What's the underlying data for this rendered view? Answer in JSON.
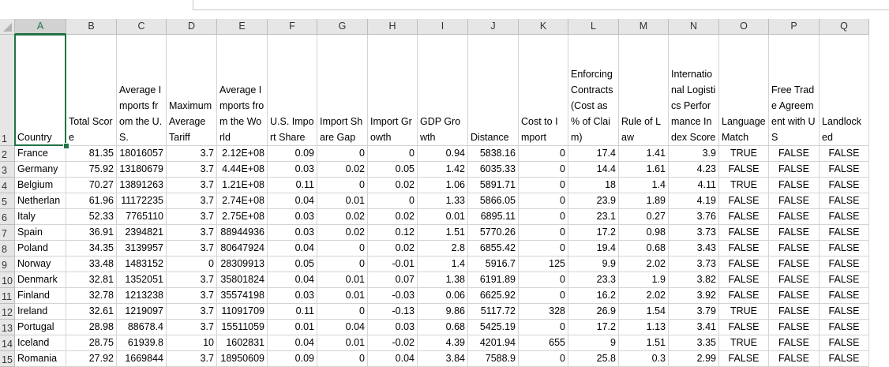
{
  "columns": [
    "A",
    "B",
    "C",
    "D",
    "E",
    "F",
    "G",
    "H",
    "I",
    "J",
    "K",
    "L",
    "M",
    "N",
    "O",
    "P",
    "Q"
  ],
  "selected_column": "A",
  "headers": [
    "Country",
    "Total Score",
    "Average Imports from the U.S.",
    "Maximum Average Tariff",
    "Average Imports from the World",
    "U.S. Import Share",
    "Import Share Gap",
    "Import Growth",
    "GDP Growth",
    "Distance",
    "Cost to Import",
    "Enforcing Contracts (Cost as % of Claim)",
    "Rule of Law",
    "International Logistics Performance Index Score",
    "Language Match",
    "Free Trade Agreement with US",
    "Landlocked"
  ],
  "rows": [
    {
      "num": "2",
      "cells": [
        "France",
        "81.35",
        "18016057",
        "3.7",
        "2.12E+08",
        "0.09",
        "0",
        "0",
        "0.94",
        "5838.16",
        "0",
        "17.4",
        "1.41",
        "3.9",
        "TRUE",
        "FALSE",
        "FALSE"
      ]
    },
    {
      "num": "3",
      "cells": [
        "Germany",
        "75.92",
        "13180679",
        "3.7",
        "4.44E+08",
        "0.03",
        "0.02",
        "0.05",
        "1.42",
        "6035.33",
        "0",
        "14.4",
        "1.61",
        "4.23",
        "FALSE",
        "FALSE",
        "FALSE"
      ]
    },
    {
      "num": "4",
      "cells": [
        "Belgium",
        "70.27",
        "13891263",
        "3.7",
        "1.21E+08",
        "0.11",
        "0",
        "0.02",
        "1.06",
        "5891.71",
        "0",
        "18",
        "1.4",
        "4.11",
        "TRUE",
        "FALSE",
        "FALSE"
      ]
    },
    {
      "num": "5",
      "cells": [
        "Netherlan",
        "61.96",
        "11172235",
        "3.7",
        "2.74E+08",
        "0.04",
        "0.01",
        "0",
        "1.33",
        "5866.05",
        "0",
        "23.9",
        "1.89",
        "4.19",
        "FALSE",
        "FALSE",
        "FALSE"
      ]
    },
    {
      "num": "6",
      "cells": [
        "Italy",
        "52.33",
        "7765110",
        "3.7",
        "2.75E+08",
        "0.03",
        "0.02",
        "0.02",
        "0.01",
        "6895.11",
        "0",
        "23.1",
        "0.27",
        "3.76",
        "FALSE",
        "FALSE",
        "FALSE"
      ]
    },
    {
      "num": "7",
      "cells": [
        "Spain",
        "36.91",
        "2394821",
        "3.7",
        "88944936",
        "0.03",
        "0.02",
        "0.12",
        "1.51",
        "5770.26",
        "0",
        "17.2",
        "0.98",
        "3.73",
        "FALSE",
        "FALSE",
        "FALSE"
      ]
    },
    {
      "num": "8",
      "cells": [
        "Poland",
        "34.35",
        "3139957",
        "3.7",
        "80647924",
        "0.04",
        "0",
        "0.02",
        "2.8",
        "6855.42",
        "0",
        "19.4",
        "0.68",
        "3.43",
        "FALSE",
        "FALSE",
        "FALSE"
      ]
    },
    {
      "num": "9",
      "cells": [
        "Norway",
        "33.48",
        "1483152",
        "0",
        "28309913",
        "0.05",
        "0",
        "-0.01",
        "1.4",
        "5916.7",
        "125",
        "9.9",
        "2.02",
        "3.73",
        "FALSE",
        "FALSE",
        "FALSE"
      ]
    },
    {
      "num": "10",
      "cells": [
        "Denmark",
        "32.81",
        "1352051",
        "3.7",
        "35801824",
        "0.04",
        "0.01",
        "0.07",
        "1.38",
        "6191.89",
        "0",
        "23.3",
        "1.9",
        "3.82",
        "FALSE",
        "FALSE",
        "FALSE"
      ]
    },
    {
      "num": "11",
      "cells": [
        "Finland",
        "32.78",
        "1213238",
        "3.7",
        "35574198",
        "0.03",
        "0.01",
        "-0.03",
        "0.06",
        "6625.92",
        "0",
        "16.2",
        "2.02",
        "3.92",
        "FALSE",
        "FALSE",
        "FALSE"
      ]
    },
    {
      "num": "12",
      "cells": [
        "Ireland",
        "32.61",
        "1219097",
        "3.7",
        "11091709",
        "0.11",
        "0",
        "-0.13",
        "9.86",
        "5117.72",
        "328",
        "26.9",
        "1.54",
        "3.79",
        "TRUE",
        "FALSE",
        "FALSE"
      ]
    },
    {
      "num": "13",
      "cells": [
        "Portugal",
        "28.98",
        "88678.4",
        "3.7",
        "15511059",
        "0.01",
        "0.04",
        "0.03",
        "0.68",
        "5425.19",
        "0",
        "17.2",
        "1.13",
        "3.41",
        "FALSE",
        "FALSE",
        "FALSE"
      ]
    },
    {
      "num": "14",
      "cells": [
        "Iceland",
        "28.75",
        "61939.8",
        "10",
        "1602831",
        "0.04",
        "0.01",
        "-0.02",
        "4.39",
        "4201.94",
        "655",
        "9",
        "1.51",
        "3.35",
        "TRUE",
        "FALSE",
        "FALSE"
      ]
    },
    {
      "num": "15",
      "cells": [
        "Romania",
        "27.92",
        "1669844",
        "3.7",
        "18950609",
        "0.09",
        "0",
        "0.04",
        "3.84",
        "7588.9",
        "0",
        "25.8",
        "0.3",
        "2.99",
        "FALSE",
        "FALSE",
        "FALSE"
      ]
    }
  ],
  "header_row_num": "1"
}
